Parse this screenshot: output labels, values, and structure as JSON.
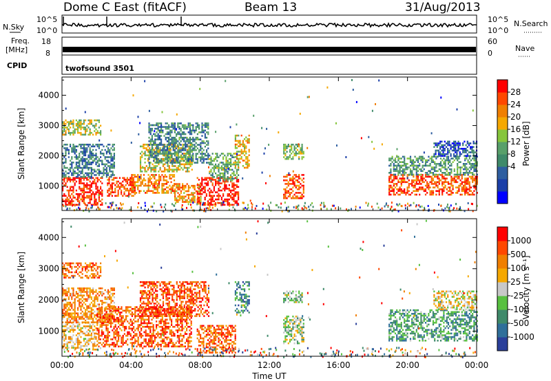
{
  "header": {
    "station": "Dome C East (fitACF)",
    "beam": "Beam 13",
    "date": "31/Aug/2013"
  },
  "strips": {
    "nsky_label": "N.Sky",
    "nsearch_label": "N.Search",
    "nsky_ticks": [
      "10^5",
      "10^0"
    ],
    "nsearch_ticks": [
      "10^5",
      "10^0"
    ],
    "freq_label_1": "Freq.",
    "freq_label_2": "[MHz]",
    "freq_ticks": [
      "18",
      "8"
    ],
    "nave_label": "Nave",
    "nave_ticks": [
      "60",
      "0"
    ],
    "cpid_label": "CPID",
    "cpid_value": "twofsound 3501"
  },
  "chart_data": [
    {
      "type": "heatmap",
      "name": "power",
      "ylabel": "Slant Range [km]",
      "xlabel": "",
      "x_ticks": [
        "00:00",
        "04:00",
        "08:00",
        "12:00",
        "16:00",
        "20:00",
        "00:00"
      ],
      "y_ticks": [
        1000,
        2000,
        3000,
        4000
      ],
      "ylim": [
        200,
        4600
      ],
      "xlim_hours": [
        0,
        24
      ],
      "colorbar": {
        "label": "Power [dB]",
        "ticks": [
          "28",
          "24",
          "20",
          "16",
          "12",
          "8",
          "4"
        ],
        "colors": [
          "#0000ff",
          "#1b3fa8",
          "#2e5ea0",
          "#3f8a6a",
          "#58a06a",
          "#86c53c",
          "#f5a800",
          "#f07f00",
          "#ff4800",
          "#ff0000"
        ]
      },
      "echo_regions": [
        {
          "t0": 0.0,
          "t1": 2.3,
          "r0": 400,
          "r1": 1300,
          "level": 0.9
        },
        {
          "t0": 0.0,
          "t1": 3.0,
          "r0": 1300,
          "r1": 2400,
          "level": 0.3
        },
        {
          "t0": 0.0,
          "t1": 2.2,
          "r0": 2700,
          "r1": 3200,
          "level": 0.55
        },
        {
          "t0": 2.6,
          "t1": 4.2,
          "r0": 700,
          "r1": 1300,
          "level": 0.85
        },
        {
          "t0": 4.0,
          "t1": 6.5,
          "r0": 800,
          "r1": 1400,
          "level": 0.75
        },
        {
          "t0": 4.5,
          "t1": 7.5,
          "r0": 1500,
          "r1": 2400,
          "level": 0.6
        },
        {
          "t0": 5.0,
          "t1": 8.5,
          "r0": 1800,
          "r1": 3100,
          "level": 0.35
        },
        {
          "t0": 6.5,
          "t1": 8.0,
          "r0": 500,
          "r1": 1100,
          "level": 0.7
        },
        {
          "t0": 7.8,
          "t1": 10.2,
          "r0": 400,
          "r1": 1300,
          "level": 0.95
        },
        {
          "t0": 8.5,
          "t1": 10.2,
          "r0": 1200,
          "r1": 2100,
          "level": 0.45
        },
        {
          "t0": 10.0,
          "t1": 10.8,
          "r0": 1600,
          "r1": 2700,
          "level": 0.65
        },
        {
          "t0": 12.8,
          "t1": 14.0,
          "r0": 600,
          "r1": 1400,
          "level": 0.85
        },
        {
          "t0": 12.8,
          "t1": 14.0,
          "r0": 1900,
          "r1": 2400,
          "level": 0.5
        },
        {
          "t0": 18.9,
          "t1": 24.0,
          "r0": 700,
          "r1": 1400,
          "level": 0.85
        },
        {
          "t0": 18.9,
          "t1": 24.0,
          "r0": 1400,
          "r1": 2000,
          "level": 0.4
        },
        {
          "t0": 21.5,
          "t1": 24.0,
          "r0": 2000,
          "r1": 2500,
          "level": 0.2
        }
      ]
    },
    {
      "type": "heatmap",
      "name": "velocity",
      "ylabel": "Slant Range [km]",
      "xlabel": "Time UT",
      "x_ticks": [
        "00:00",
        "04:00",
        "08:00",
        "12:00",
        "16:00",
        "20:00",
        "00:00"
      ],
      "y_ticks": [
        1000,
        2000,
        3000,
        4000
      ],
      "ylim": [
        200,
        4600
      ],
      "xlim_hours": [
        0,
        24
      ],
      "colorbar": {
        "label": "Velocity [m s⁻¹]",
        "ticks": [
          "1000",
          "500",
          "100",
          "25",
          "-25",
          "-100",
          "-500",
          "-1000"
        ],
        "colors": [
          "#2a3f9a",
          "#2f6f9a",
          "#3f8a6a",
          "#58c040",
          "#c8c8c8",
          "#f5a800",
          "#f07f00",
          "#ff4800",
          "#ff0000"
        ]
      },
      "echo_regions": [
        {
          "t0": 0.0,
          "t1": 2.0,
          "r0": 400,
          "r1": 1300,
          "level": 0.6
        },
        {
          "t0": 0.0,
          "t1": 3.0,
          "r0": 1300,
          "r1": 2400,
          "level": 0.7
        },
        {
          "t0": 0.0,
          "t1": 2.2,
          "r0": 2700,
          "r1": 3200,
          "level": 0.75
        },
        {
          "t0": 2.0,
          "t1": 7.5,
          "r0": 500,
          "r1": 1800,
          "level": 0.8
        },
        {
          "t0": 4.5,
          "t1": 8.5,
          "r0": 1500,
          "r1": 2600,
          "level": 0.82
        },
        {
          "t0": 7.8,
          "t1": 10.0,
          "r0": 300,
          "r1": 1200,
          "level": 0.78
        },
        {
          "t0": 10.0,
          "t1": 10.8,
          "r0": 1600,
          "r1": 2600,
          "level": 0.25
        },
        {
          "t0": 12.8,
          "t1": 14.0,
          "r0": 600,
          "r1": 1500,
          "level": 0.45
        },
        {
          "t0": 12.8,
          "t1": 14.0,
          "r0": 1900,
          "r1": 2300,
          "level": 0.4
        },
        {
          "t0": 18.9,
          "t1": 24.0,
          "r0": 700,
          "r1": 1700,
          "level": 0.3
        },
        {
          "t0": 21.5,
          "t1": 24.0,
          "r0": 1700,
          "r1": 2300,
          "level": 0.55
        }
      ]
    }
  ]
}
